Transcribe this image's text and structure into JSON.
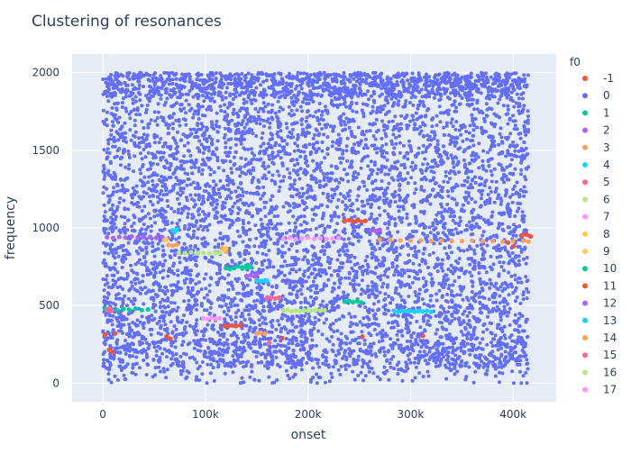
{
  "chart_data": {
    "type": "scatter",
    "title": "Clustering of resonances",
    "xlabel": "onset",
    "ylabel": "frequency",
    "xlim": [
      -30000,
      442000
    ],
    "ylim": [
      -120,
      2120
    ],
    "x_ticks": [
      0,
      100000,
      200000,
      300000,
      400000
    ],
    "x_tick_labels": [
      "0",
      "100k",
      "200k",
      "300k",
      "400k"
    ],
    "y_ticks": [
      0,
      500,
      1000,
      1500,
      2000
    ],
    "y_tick_labels": [
      "0",
      "500",
      "1000",
      "1500",
      "2000"
    ],
    "grid": true,
    "legend": {
      "title": "f0",
      "placement": "right"
    },
    "background_data_note": "",
    "series": [
      {
        "name": "-1",
        "color": "#EF553B",
        "points": [
          [
            2000,
            310
          ],
          [
            6000,
            215
          ],
          [
            9000,
            200
          ],
          [
            12000,
            320
          ],
          [
            62000,
            300
          ],
          [
            66000,
            285
          ],
          [
            175000,
            290
          ],
          [
            253000,
            300
          ],
          [
            312000,
            305
          ],
          [
            395000,
            905
          ],
          [
            400000,
            880
          ],
          [
            410000,
            920
          ],
          [
            413000,
            960
          ],
          [
            417000,
            945
          ]
        ]
      },
      {
        "name": "0",
        "color": "#636efa",
        "background": true
      },
      {
        "name": "1",
        "color": "#00cc96",
        "points": [
          [
            2000,
            480
          ],
          [
            8000,
            475
          ],
          [
            14000,
            470
          ],
          [
            20000,
            478
          ],
          [
            26000,
            472
          ],
          [
            32000,
            480
          ],
          [
            38000,
            470
          ],
          [
            44000,
            475
          ],
          [
            132000,
            752
          ],
          [
            136000,
            745
          ],
          [
            140000,
            758
          ],
          [
            144000,
            748
          ]
        ]
      },
      {
        "name": "2",
        "color": "#ab63fa",
        "points": [
          [
            4000,
            940
          ],
          [
            10000,
            935
          ],
          [
            16000,
            942
          ],
          [
            22000,
            938
          ],
          [
            28000,
            945
          ],
          [
            34000,
            936
          ],
          [
            40000,
            940
          ],
          [
            46000,
            942
          ],
          [
            52000,
            936
          ],
          [
            58000,
            940
          ],
          [
            262000,
            985
          ],
          [
            266000,
            980
          ],
          [
            270000,
            988
          ]
        ]
      },
      {
        "name": "3",
        "color": "#FFA15A",
        "points": [
          [
            64000,
            890
          ],
          [
            68000,
            885
          ],
          [
            72000,
            892
          ],
          [
            116000,
            870
          ],
          [
            118000,
            858
          ],
          [
            120000,
            848
          ],
          [
            270000,
            925
          ],
          [
            280000,
            922
          ],
          [
            290000,
            920
          ],
          [
            300000,
            918
          ],
          [
            310000,
            920
          ],
          [
            320000,
            916
          ],
          [
            330000,
            918
          ],
          [
            340000,
            915
          ],
          [
            350000,
            916
          ],
          [
            360000,
            918
          ],
          [
            370000,
            914
          ],
          [
            380000,
            916
          ],
          [
            390000,
            912
          ],
          [
            400000,
            914
          ],
          [
            410000,
            916
          ],
          [
            415000,
            912
          ]
        ]
      },
      {
        "name": "4",
        "color": "#19d3f3",
        "points": [
          [
            68000,
            985
          ],
          [
            70000,
            975
          ],
          [
            72000,
            990
          ]
        ]
      },
      {
        "name": "5",
        "color": "#FF6692",
        "points": [
          [
            4000,
            470
          ],
          [
            6000,
            480
          ],
          [
            8000,
            465
          ],
          [
            160000,
            548
          ],
          [
            164000,
            552
          ],
          [
            168000,
            545
          ],
          [
            172000,
            550
          ]
        ]
      },
      {
        "name": "6",
        "color": "#B6E880",
        "points": [
          [
            74000,
            840
          ],
          [
            80000,
            838
          ],
          [
            86000,
            842
          ],
          [
            92000,
            836
          ],
          [
            98000,
            840
          ],
          [
            104000,
            835
          ],
          [
            110000,
            838
          ],
          [
            114000,
            840
          ]
        ]
      },
      {
        "name": "7",
        "color": "#FF97FF",
        "points": [
          [
            98000,
            418
          ],
          [
            102000,
            412
          ],
          [
            106000,
            420
          ],
          [
            110000,
            415
          ],
          [
            114000,
            418
          ]
        ]
      },
      {
        "name": "8",
        "color": "#FECB52",
        "points": [
          [
            118000,
            860
          ],
          [
            120000,
            870
          ]
        ]
      },
      {
        "name": "9",
        "color": "#FECB52",
        "points": [
          [
            60000,
            920
          ],
          [
            62000,
            925
          ]
        ]
      },
      {
        "name": "10",
        "color": "#00cc96",
        "points": [
          [
            120000,
            740
          ],
          [
            124000,
            735
          ],
          [
            128000,
            742
          ],
          [
            136000,
            738
          ],
          [
            140000,
            745
          ],
          [
            236000,
            525
          ],
          [
            240000,
            530
          ],
          [
            244000,
            522
          ],
          [
            248000,
            528
          ],
          [
            252000,
            520
          ]
        ]
      },
      {
        "name": "11",
        "color": "#EF553B",
        "points": [
          [
            118000,
            370
          ],
          [
            122000,
            365
          ],
          [
            126000,
            372
          ],
          [
            130000,
            368
          ],
          [
            134000,
            374
          ],
          [
            236000,
            1045
          ],
          [
            240000,
            1050
          ],
          [
            244000,
            1042
          ],
          [
            248000,
            1048
          ],
          [
            252000,
            1040
          ],
          [
            256000,
            1046
          ],
          [
            408000,
            950
          ],
          [
            412000,
            958
          ]
        ]
      },
      {
        "name": "12",
        "color": "#ab63fa",
        "points": [
          [
            140000,
            690
          ],
          [
            144000,
            695
          ],
          [
            148000,
            688
          ],
          [
            150000,
            700
          ]
        ]
      },
      {
        "name": "13",
        "color": "#19d3f3",
        "points": [
          [
            150000,
            660
          ],
          [
            154000,
            658
          ],
          [
            158000,
            662
          ],
          [
            160000,
            660
          ],
          [
            284000,
            465
          ],
          [
            288000,
            460
          ],
          [
            292000,
            468
          ],
          [
            296000,
            462
          ],
          [
            300000,
            466
          ],
          [
            304000,
            460
          ],
          [
            308000,
            464
          ],
          [
            312000,
            462
          ],
          [
            316000,
            466
          ],
          [
            320000,
            460
          ]
        ]
      },
      {
        "name": "14",
        "color": "#FFA15A",
        "points": [
          [
            150000,
            320
          ],
          [
            154000,
            325
          ],
          [
            158000,
            318
          ]
        ]
      },
      {
        "name": "15",
        "color": "#FF6692",
        "points": [
          [
            160000,
            545
          ],
          [
            162000,
            260
          ]
        ]
      },
      {
        "name": "16",
        "color": "#B6E880",
        "points": [
          [
            176000,
            465
          ],
          [
            180000,
            470
          ],
          [
            184000,
            462
          ],
          [
            188000,
            468
          ],
          [
            192000,
            465
          ],
          [
            196000,
            470
          ],
          [
            200000,
            466
          ],
          [
            204000,
            468
          ],
          [
            208000,
            472
          ],
          [
            212000,
            466
          ],
          [
            216000,
            470
          ]
        ]
      },
      {
        "name": "17",
        "color": "#FF97FF",
        "points": [
          [
            176000,
            930
          ],
          [
            182000,
            935
          ],
          [
            188000,
            928
          ],
          [
            194000,
            932
          ],
          [
            200000,
            936
          ],
          [
            206000,
            930
          ],
          [
            212000,
            934
          ],
          [
            218000,
            928
          ],
          [
            224000,
            932
          ],
          [
            230000,
            936
          ]
        ]
      }
    ]
  }
}
